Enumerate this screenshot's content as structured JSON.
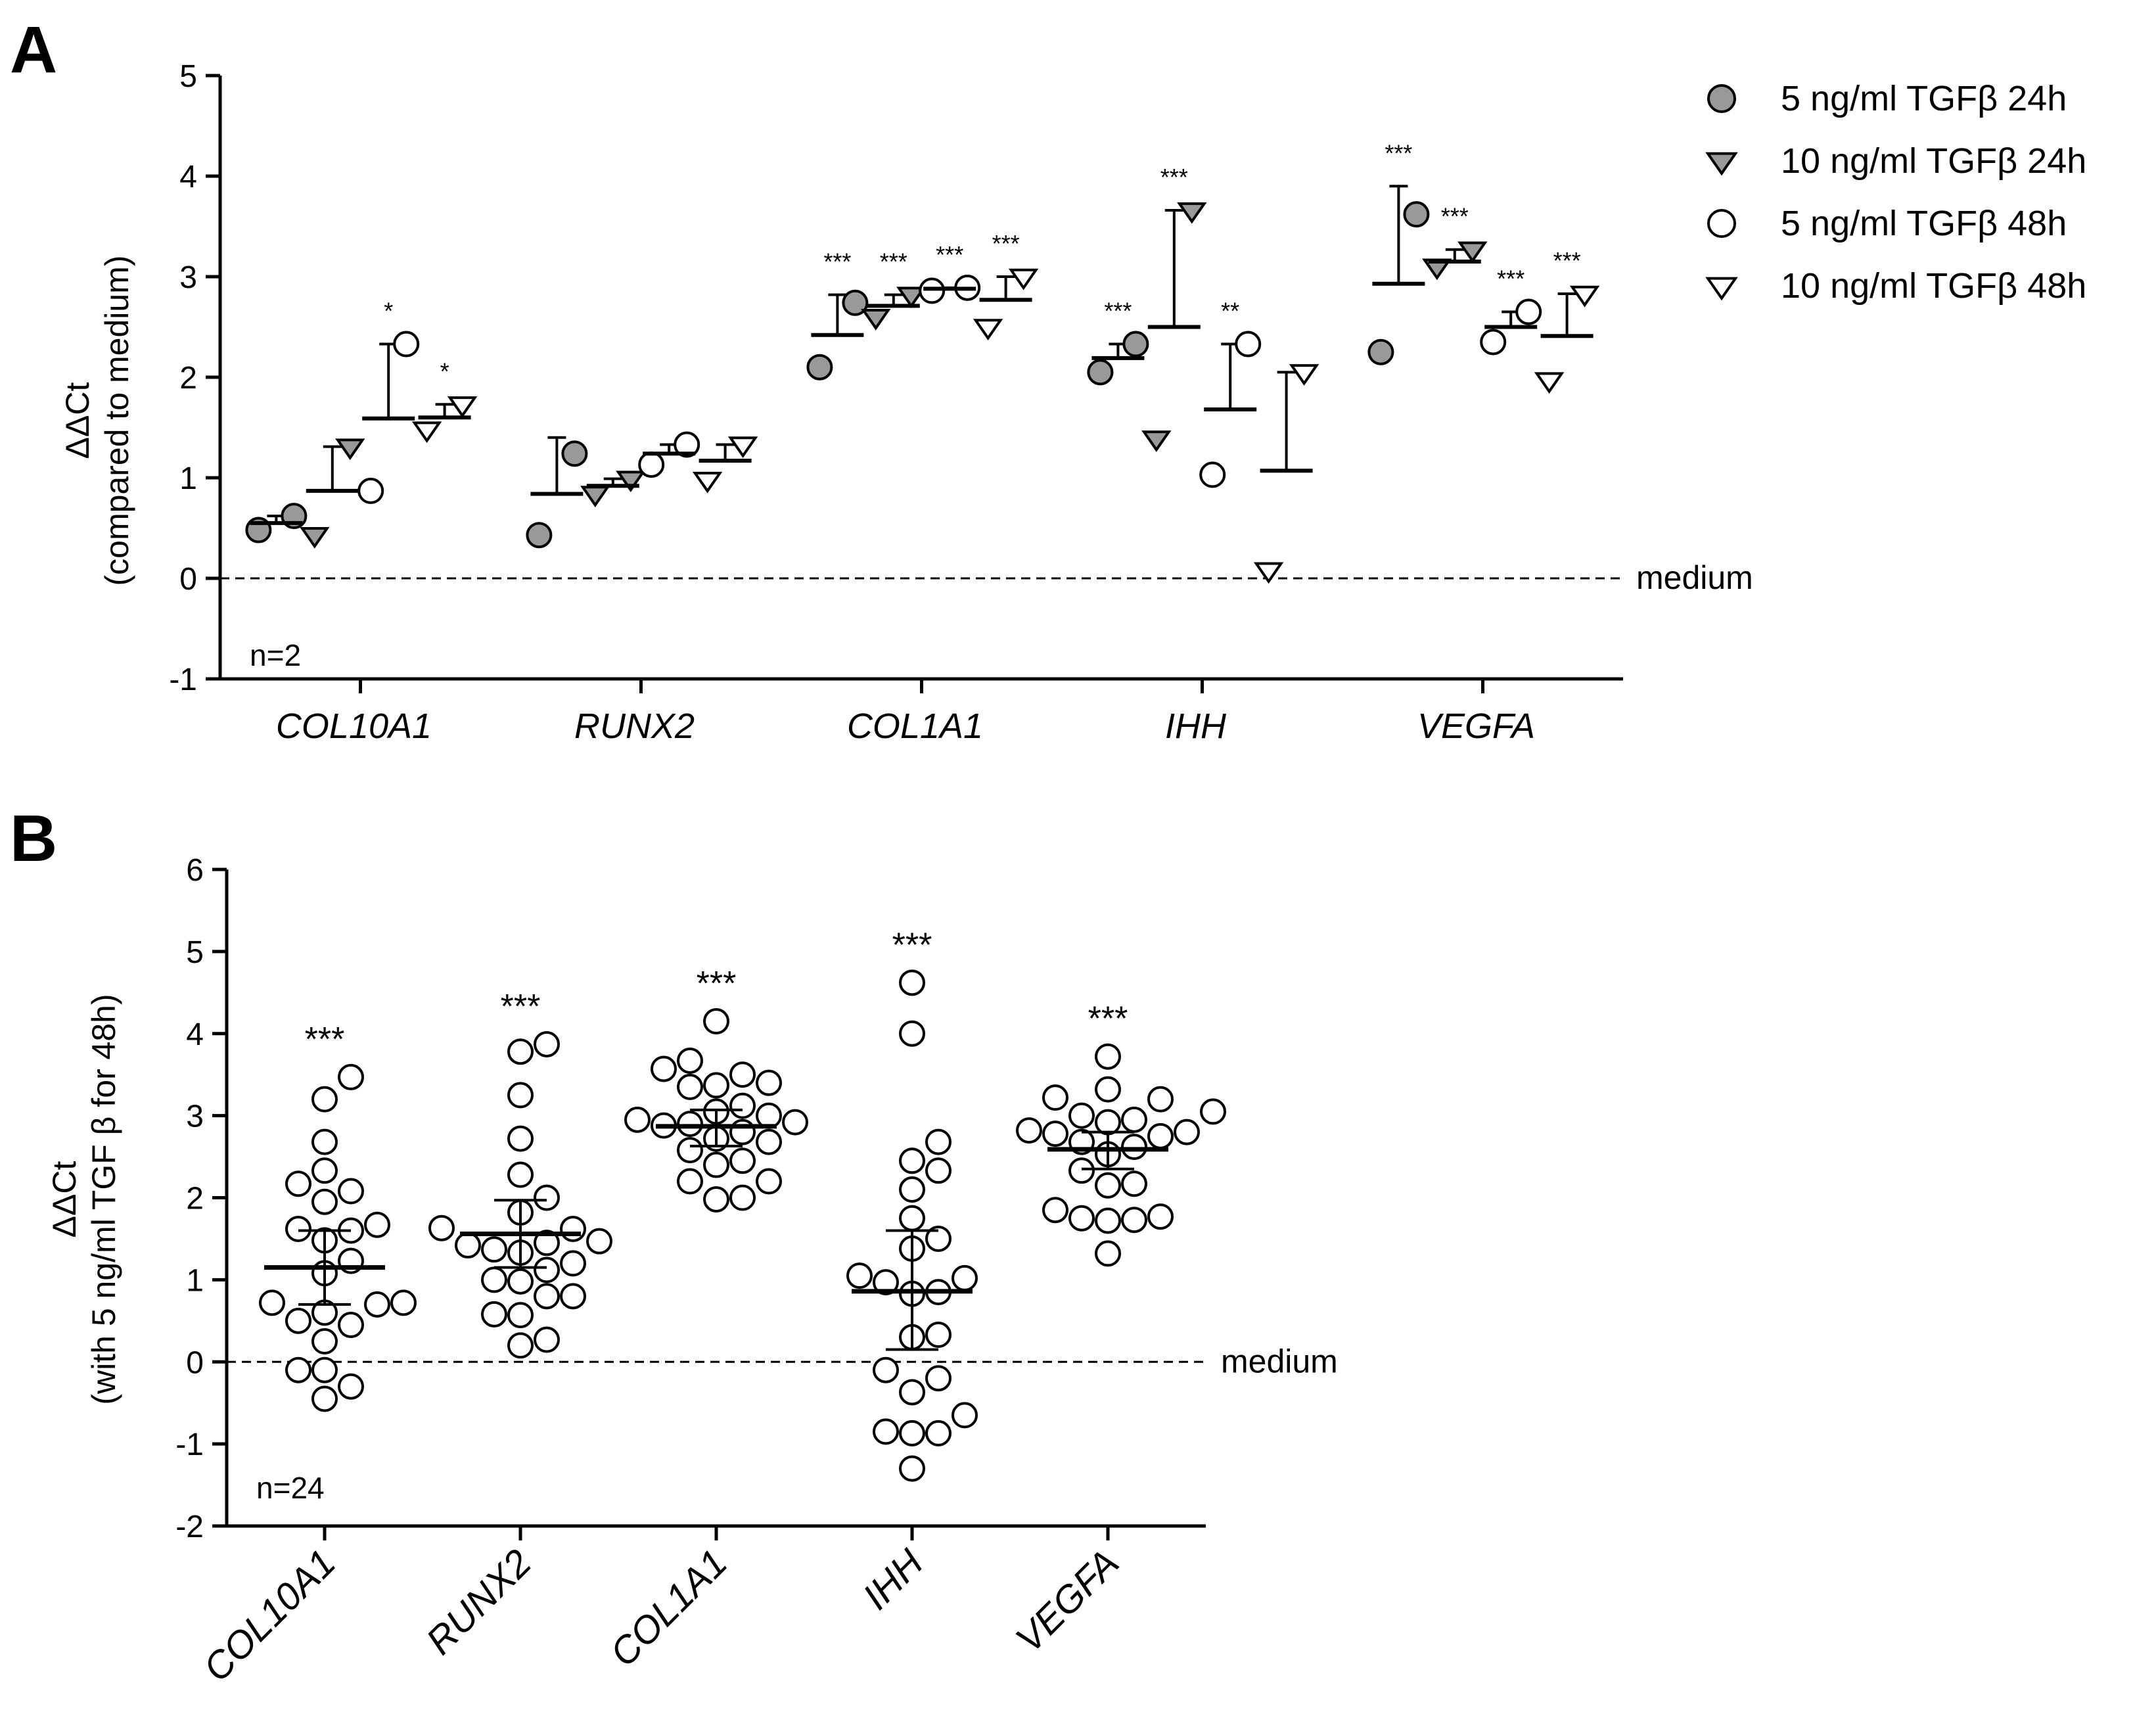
{
  "chart_data": [
    {
      "panel_label": "A",
      "type": "scatter",
      "ylabel": "ΔΔCt",
      "ylabel_sub": "(compared to medium)",
      "ylim": [
        -1,
        5
      ],
      "yticks": [
        "-1",
        "0",
        "1",
        "2",
        "3",
        "4",
        "5"
      ],
      "categories": [
        "COL10A1",
        "RUNX2",
        "COL1A1",
        "IHH",
        "VEGFA"
      ],
      "reference_line": {
        "y": 0,
        "label": "medium",
        "style": "dashed"
      },
      "n_label": "n=2",
      "legend_position": "top-right",
      "series": [
        {
          "name": "5 ng/ml TGFβ 24h",
          "marker": "circle",
          "fill": "#999999",
          "points": [
            [
              0.48,
              0.62
            ],
            [
              0.43,
              1.24
            ],
            [
              2.1,
              2.74
            ],
            [
              2.05,
              2.33
            ],
            [
              2.25,
              3.62
            ]
          ],
          "mean": [
            0.55,
            0.84,
            2.42,
            2.19,
            2.93
          ],
          "err_top": [
            0.62,
            1.4,
            2.82,
            2.33,
            3.9
          ],
          "sig": [
            "",
            "",
            "***",
            "***",
            "***"
          ]
        },
        {
          "name": "10 ng/ml TGFβ 24h",
          "marker": "triangle-down",
          "fill": "#999999",
          "points": [
            [
              0.43,
              1.31
            ],
            [
              0.84,
              0.99
            ],
            [
              2.6,
              2.82
            ],
            [
              1.39,
              3.66
            ],
            [
              3.1,
              3.27
            ]
          ],
          "mean": [
            0.87,
            0.92,
            2.71,
            2.5,
            3.15
          ],
          "err_top": [
            1.31,
            0.99,
            2.82,
            3.66,
            3.27
          ],
          "sig": [
            "",
            "",
            "***",
            "***",
            "***"
          ]
        },
        {
          "name": "5 ng/ml TGFβ 48h",
          "marker": "circle",
          "fill": "#ffffff",
          "points": [
            [
              0.87,
              2.33
            ],
            [
              1.13,
              1.33
            ],
            [
              2.86,
              2.89
            ],
            [
              1.03,
              2.33
            ],
            [
              2.35,
              2.65
            ]
          ],
          "mean": [
            1.59,
            1.24,
            2.88,
            1.68,
            2.5
          ],
          "err_top": [
            2.33,
            1.33,
            2.89,
            2.33,
            2.65
          ],
          "sig": [
            "*",
            "",
            "***",
            "**",
            "***"
          ]
        },
        {
          "name": "10 ng/ml TGFβ 48h",
          "marker": "triangle-down",
          "fill": "#ffffff",
          "points": [
            [
              1.48,
              1.73
            ],
            [
              0.98,
              1.33
            ],
            [
              2.5,
              3.0
            ],
            [
              0.08,
              2.05
            ],
            [
              1.97,
              2.83
            ]
          ],
          "mean": [
            1.6,
            1.17,
            2.77,
            1.07,
            2.41
          ],
          "err_top": [
            1.73,
            1.33,
            3.0,
            2.05,
            2.83
          ],
          "sig": [
            "*",
            "",
            "***",
            "",
            "***"
          ]
        }
      ]
    },
    {
      "panel_label": "B",
      "type": "scatter",
      "ylabel": "ΔΔCt",
      "ylabel_sub": "(with 5 ng/ml TGF β for 48h)",
      "ylim": [
        -2,
        6
      ],
      "yticks": [
        "-2",
        "-1",
        "0",
        "1",
        "2",
        "3",
        "4",
        "5",
        "6"
      ],
      "categories": [
        "COL10A1",
        "RUNX2",
        "COL1A1",
        "IHH",
        "VEGFA"
      ],
      "reference_line": {
        "y": 0,
        "label": "medium",
        "style": "dashed"
      },
      "n_label": "n=24",
      "groups": [
        {
          "values": [
            3.47,
            3.2,
            2.68,
            2.33,
            2.17,
            2.08,
            1.95,
            1.67,
            1.62,
            1.6,
            1.48,
            1.23,
            1.08,
            0.72,
            0.72,
            0.7,
            0.6,
            0.5,
            0.45,
            0.25,
            -0.1,
            -0.1,
            -0.3,
            -0.45
          ],
          "mean": 1.15,
          "err_low": 0.7,
          "err_high": 1.6,
          "sig": "***"
        },
        {
          "values": [
            3.87,
            3.78,
            3.25,
            2.72,
            2.28,
            2.0,
            1.82,
            1.63,
            1.62,
            1.47,
            1.45,
            1.42,
            1.37,
            1.33,
            1.2,
            1.12,
            1.0,
            0.98,
            0.8,
            0.8,
            0.58,
            0.57,
            0.27,
            0.2
          ],
          "mean": 1.56,
          "err_low": 1.15,
          "err_high": 1.97,
          "sig": "***"
        },
        {
          "values": [
            4.15,
            3.67,
            3.57,
            3.5,
            3.4,
            3.37,
            3.35,
            3.12,
            3.05,
            3.0,
            2.95,
            2.92,
            2.9,
            2.88,
            2.8,
            2.72,
            2.68,
            2.58,
            2.45,
            2.4,
            2.2,
            2.2,
            2.0,
            1.98
          ],
          "mean": 2.87,
          "err_low": 2.63,
          "err_high": 3.07,
          "sig": "***"
        },
        {
          "values": [
            4.62,
            4.0,
            2.68,
            2.45,
            2.33,
            2.1,
            1.75,
            1.5,
            1.38,
            1.05,
            1.02,
            0.97,
            0.85,
            0.83,
            0.33,
            0.3,
            -0.1,
            -0.2,
            -0.37,
            -0.65,
            -0.85,
            -0.87,
            -0.87,
            -1.3
          ],
          "mean": 0.86,
          "err_low": 0.15,
          "err_high": 1.6,
          "sig": "***"
        },
        {
          "values": [
            3.72,
            3.32,
            3.22,
            3.2,
            3.05,
            3.0,
            2.95,
            2.92,
            2.82,
            2.8,
            2.78,
            2.75,
            2.68,
            2.62,
            2.53,
            2.33,
            2.17,
            2.15,
            1.85,
            1.77,
            1.75,
            1.73,
            1.72,
            1.32
          ],
          "mean": 2.59,
          "err_low": 2.35,
          "err_high": 2.8,
          "sig": "***"
        }
      ]
    }
  ]
}
